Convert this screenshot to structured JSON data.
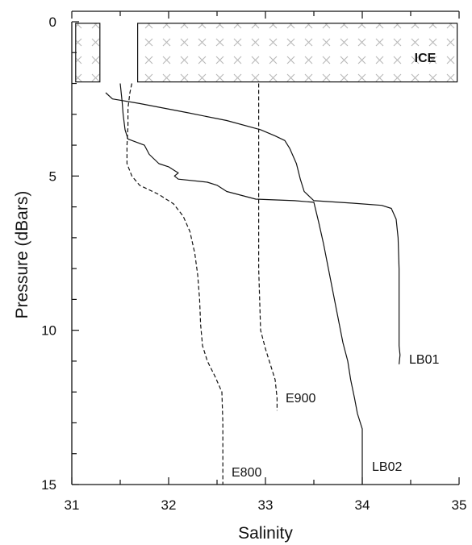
{
  "chart_data": {
    "type": "line",
    "xlabel": "Salinity",
    "ylabel": "Pressure (dBars)",
    "xlim": [
      31,
      35
    ],
    "ylim": [
      0,
      15
    ],
    "y_inverted": true,
    "x_ticks": [
      "31",
      "32",
      "33",
      "34",
      "35"
    ],
    "y_ticks": [
      "0",
      "5",
      "10",
      "15"
    ],
    "grid": false,
    "legend": "none",
    "ice": {
      "label": "ICE",
      "blocks": [
        {
          "x": [
            31.04,
            31.29
          ],
          "y": [
            0.05,
            1.95
          ]
        },
        {
          "x": [
            31.68,
            34.98
          ],
          "y": [
            0.05,
            1.95
          ]
        }
      ]
    },
    "series": [
      {
        "name": "LB01",
        "style": "solid",
        "points": [
          [
            31.35,
            2.3
          ],
          [
            31.42,
            2.5
          ],
          [
            31.7,
            2.65
          ],
          [
            32.2,
            2.95
          ],
          [
            32.6,
            3.2
          ],
          [
            32.95,
            3.5
          ],
          [
            33.1,
            3.7
          ],
          [
            33.2,
            3.85
          ],
          [
            33.25,
            4.1
          ],
          [
            33.32,
            4.6
          ],
          [
            33.36,
            5.1
          ],
          [
            33.4,
            5.5
          ],
          [
            33.5,
            5.8
          ],
          [
            33.9,
            5.88
          ],
          [
            34.2,
            5.95
          ],
          [
            34.3,
            6.05
          ],
          [
            34.35,
            6.4
          ],
          [
            34.37,
            7.0
          ],
          [
            34.38,
            8.0
          ],
          [
            34.38,
            9.0
          ],
          [
            34.38,
            10.0
          ],
          [
            34.38,
            10.5
          ],
          [
            34.39,
            10.8
          ],
          [
            34.38,
            11.1
          ]
        ],
        "label": "LB01"
      },
      {
        "name": "LB02",
        "style": "solid",
        "points": [
          [
            31.5,
            2.0
          ],
          [
            31.52,
            2.6
          ],
          [
            31.53,
            3.0
          ],
          [
            31.55,
            3.5
          ],
          [
            31.58,
            3.8
          ],
          [
            31.75,
            4.0
          ],
          [
            31.8,
            4.3
          ],
          [
            31.9,
            4.6
          ],
          [
            32.0,
            4.7
          ],
          [
            32.05,
            4.8
          ],
          [
            32.1,
            4.9
          ],
          [
            32.06,
            5.0
          ],
          [
            32.1,
            5.1
          ],
          [
            32.4,
            5.2
          ],
          [
            32.5,
            5.3
          ],
          [
            32.6,
            5.5
          ],
          [
            32.9,
            5.75
          ],
          [
            33.3,
            5.8
          ],
          [
            33.5,
            5.85
          ],
          [
            33.55,
            6.5
          ],
          [
            33.6,
            7.2
          ],
          [
            33.65,
            8.0
          ],
          [
            33.7,
            8.8
          ],
          [
            33.75,
            9.6
          ],
          [
            33.8,
            10.4
          ],
          [
            33.85,
            11.0
          ],
          [
            33.88,
            11.6
          ],
          [
            33.92,
            12.2
          ],
          [
            33.95,
            12.7
          ],
          [
            34.0,
            13.2
          ],
          [
            34.0,
            14.0
          ],
          [
            34.0,
            15.0
          ]
        ],
        "label": "LB02"
      },
      {
        "name": "E800",
        "style": "dashed",
        "points": [
          [
            31.62,
            2.0
          ],
          [
            31.6,
            2.3
          ],
          [
            31.58,
            2.8
          ],
          [
            31.58,
            3.4
          ],
          [
            31.57,
            4.0
          ],
          [
            31.57,
            4.6
          ],
          [
            31.62,
            5.0
          ],
          [
            31.7,
            5.3
          ],
          [
            31.9,
            5.6
          ],
          [
            32.05,
            5.9
          ],
          [
            32.15,
            6.3
          ],
          [
            32.22,
            6.8
          ],
          [
            32.27,
            7.5
          ],
          [
            32.3,
            8.2
          ],
          [
            32.32,
            9.0
          ],
          [
            32.33,
            9.8
          ],
          [
            32.35,
            10.5
          ],
          [
            32.4,
            11.0
          ],
          [
            32.48,
            11.5
          ],
          [
            32.55,
            12.0
          ],
          [
            32.56,
            13.0
          ],
          [
            32.56,
            14.0
          ],
          [
            32.56,
            15.0
          ]
        ],
        "label": "E800"
      },
      {
        "name": "E900",
        "style": "dashed",
        "points": [
          [
            32.93,
            2.0
          ],
          [
            32.93,
            3.0
          ],
          [
            32.93,
            4.0
          ],
          [
            32.93,
            5.0
          ],
          [
            32.93,
            6.0
          ],
          [
            32.93,
            7.0
          ],
          [
            32.93,
            8.0
          ],
          [
            32.94,
            9.0
          ],
          [
            32.95,
            10.0
          ],
          [
            33.0,
            10.6
          ],
          [
            33.05,
            11.1
          ],
          [
            33.1,
            11.6
          ],
          [
            33.12,
            12.2
          ],
          [
            33.12,
            12.6
          ]
        ],
        "label": "E900"
      }
    ]
  }
}
